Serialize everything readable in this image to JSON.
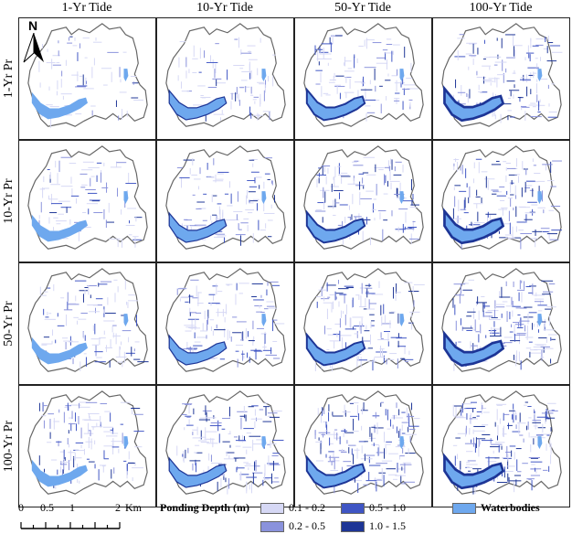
{
  "columns": [
    "1-Yr Tide",
    "10-Yr Tide",
    "50-Yr Tide",
    "100-Yr Tide"
  ],
  "rows": [
    "1-Yr Pr",
    "10-Yr Pr",
    "50-Yr Pr",
    "100-Yr Pr"
  ],
  "north_label": "N",
  "scale_bar": {
    "ticks": [
      "0",
      "0.5",
      "1",
      "2"
    ],
    "unit": "Km"
  },
  "legend": {
    "title": "Ponding Depth (m)",
    "classes": [
      {
        "label": "0.1 - 0.2",
        "color": "#d6d8f5"
      },
      {
        "label": "0.2 - 0.5",
        "color": "#8a92dc"
      },
      {
        "label": "0.5 - 1.0",
        "color": "#3f55c4"
      },
      {
        "label": "1.0 - 1.5",
        "color": "#1d3596"
      }
    ],
    "waterbodies": {
      "label": "Waterbodies",
      "color": "#6ea8ee"
    }
  }
}
